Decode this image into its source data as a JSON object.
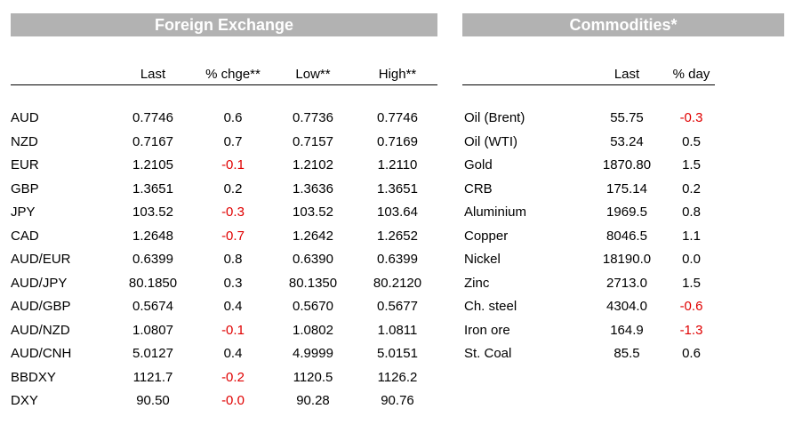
{
  "fx": {
    "title": "Foreign Exchange",
    "headers": [
      "Last",
      "% chge**",
      "Low**",
      "High**"
    ],
    "rows": [
      {
        "name": "AUD",
        "last": "0.7746",
        "chg": "0.6",
        "low": "0.7736",
        "high": "0.7746",
        "neg": false
      },
      {
        "name": "NZD",
        "last": "0.7167",
        "chg": "0.7",
        "low": "0.7157",
        "high": "0.7169",
        "neg": false
      },
      {
        "name": "EUR",
        "last": "1.2105",
        "chg": "-0.1",
        "low": "1.2102",
        "high": "1.2110",
        "neg": true
      },
      {
        "name": "GBP",
        "last": "1.3651",
        "chg": "0.2",
        "low": "1.3636",
        "high": "1.3651",
        "neg": false
      },
      {
        "name": "JPY",
        "last": "103.52",
        "chg": "-0.3",
        "low": "103.52",
        "high": "103.64",
        "neg": true
      },
      {
        "name": "CAD",
        "last": "1.2648",
        "chg": "-0.7",
        "low": "1.2642",
        "high": "1.2652",
        "neg": true
      },
      {
        "name": "AUD/EUR",
        "last": "0.6399",
        "chg": "0.8",
        "low": "0.6390",
        "high": "0.6399",
        "neg": false
      },
      {
        "name": "AUD/JPY",
        "last": "80.1850",
        "chg": "0.3",
        "low": "80.1350",
        "high": "80.2120",
        "neg": false
      },
      {
        "name": "AUD/GBP",
        "last": "0.5674",
        "chg": "0.4",
        "low": "0.5670",
        "high": "0.5677",
        "neg": false
      },
      {
        "name": "AUD/NZD",
        "last": "1.0807",
        "chg": "-0.1",
        "low": "1.0802",
        "high": "1.0811",
        "neg": true
      },
      {
        "name": "AUD/CNH",
        "last": "5.0127",
        "chg": "0.4",
        "low": "4.9999",
        "high": "5.0151",
        "neg": false
      },
      {
        "name": "BBDXY",
        "last": "1121.7",
        "chg": "-0.2",
        "low": "1120.5",
        "high": "1126.2",
        "neg": true
      },
      {
        "name": "DXY",
        "last": "90.50",
        "chg": "-0.0",
        "low": "90.28",
        "high": "90.76",
        "neg": true
      }
    ]
  },
  "commodities": {
    "title": "Commodities*",
    "headers": [
      "Last",
      "% day"
    ],
    "rows": [
      {
        "name": "Oil (Brent)",
        "last": "55.75",
        "day": "-0.3",
        "neg": true
      },
      {
        "name": "Oil (WTI)",
        "last": "53.24",
        "day": "0.5",
        "neg": false
      },
      {
        "name": "Gold",
        "last": "1870.80",
        "day": "1.5",
        "neg": false
      },
      {
        "name": "CRB",
        "last": "175.14",
        "day": "0.2",
        "neg": false
      },
      {
        "name": "Aluminium",
        "last": "1969.5",
        "day": "0.8",
        "neg": false
      },
      {
        "name": "Copper",
        "last": "8046.5",
        "day": "1.1",
        "neg": false
      },
      {
        "name": "Nickel",
        "last": "18190.0",
        "day": "0.0",
        "neg": false
      },
      {
        "name": "Zinc",
        "last": "2713.0",
        "day": "1.5",
        "neg": false
      },
      {
        "name": "Ch. steel",
        "last": "4304.0",
        "day": "-0.6",
        "neg": true
      },
      {
        "name": "Iron ore",
        "last": "164.9",
        "day": "-1.3",
        "neg": true
      },
      {
        "name": "St. Coal",
        "last": "85.5",
        "day": "0.6",
        "neg": false
      }
    ]
  },
  "colors": {
    "title_bg": "#b2b2b2",
    "negative": "#e00000"
  }
}
